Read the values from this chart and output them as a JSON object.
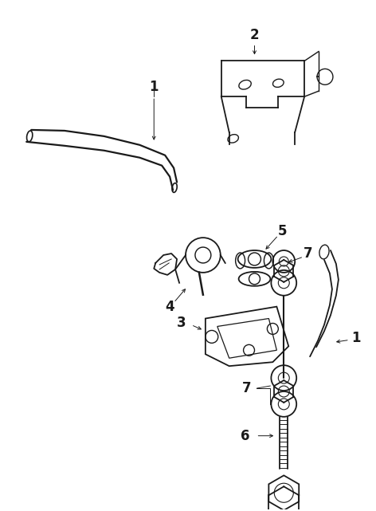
{
  "background_color": "#ffffff",
  "line_color": "#1a1a1a",
  "fig_width": 4.72,
  "fig_height": 6.41,
  "dpi": 100,
  "label_fontsize": 12,
  "leader_lw": 0.7,
  "part_lw": 1.3
}
